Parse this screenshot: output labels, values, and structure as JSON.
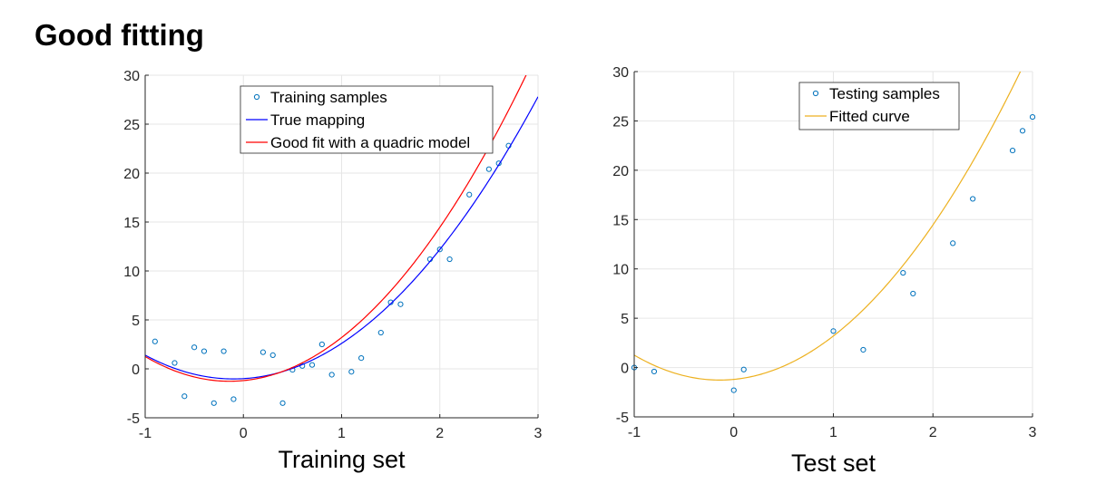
{
  "page": {
    "title": "Good fitting"
  },
  "colors": {
    "samples": "#0072BD",
    "true_mapping": "#0000FF",
    "good_fit": "#FF0000",
    "fitted_curve": "#EDB120",
    "grid": "#e6e6e6",
    "axis": "#262626"
  },
  "chart_data": [
    {
      "type": "scatter",
      "title": "",
      "xlabel": "Training set",
      "ylabel": "",
      "xlim": [
        -1,
        3
      ],
      "ylim": [
        -5,
        30
      ],
      "xticks": [
        -1,
        0,
        1,
        2,
        3
      ],
      "yticks": [
        -5,
        0,
        5,
        10,
        15,
        20,
        25,
        30
      ],
      "grid": true,
      "legend_position": "top",
      "series": [
        {
          "name": "Training samples",
          "kind": "markers",
          "color": "#0072BD",
          "x": [
            -0.9,
            -0.7,
            -0.6,
            -0.5,
            -0.4,
            -0.3,
            -0.2,
            -0.1,
            0.2,
            0.3,
            0.4,
            0.5,
            0.6,
            0.7,
            0.8,
            0.9,
            1.1,
            1.2,
            1.4,
            1.5,
            1.6,
            1.9,
            2.0,
            2.1,
            2.3,
            2.5,
            2.6,
            2.7
          ],
          "y": [
            2.8,
            0.6,
            -2.8,
            2.2,
            1.8,
            -3.5,
            1.8,
            -3.1,
            1.7,
            1.4,
            -3.5,
            -0.1,
            0.3,
            0.4,
            2.5,
            -0.6,
            -0.3,
            1.1,
            3.7,
            6.8,
            6.6,
            11.2,
            12.2,
            11.2,
            17.8,
            20.4,
            21.0,
            22.8
          ]
        },
        {
          "name": "True mapping",
          "kind": "line",
          "color": "#0000FF",
          "formula": "3x^2 + 0.6x - 1",
          "coefficients": [
            3,
            0.6,
            -1
          ]
        },
        {
          "name": "Good fit with a quadric model",
          "kind": "line",
          "color": "#FF0000",
          "formula": "3.43x^2 + 0.97x - 1.2",
          "coefficients": [
            3.43,
            0.97,
            -1.2
          ]
        }
      ]
    },
    {
      "type": "scatter",
      "title": "",
      "xlabel": "Test set",
      "ylabel": "",
      "xlim": [
        -1,
        3
      ],
      "ylim": [
        -5,
        30
      ],
      "xticks": [
        -1,
        0,
        1,
        2,
        3
      ],
      "yticks": [
        -5,
        0,
        5,
        10,
        15,
        20,
        25,
        30
      ],
      "grid": true,
      "legend_position": "top-right",
      "series": [
        {
          "name": "Testing samples",
          "kind": "markers",
          "color": "#0072BD",
          "x": [
            -1.0,
            -0.8,
            0.0,
            0.1,
            1.0,
            1.3,
            1.7,
            1.8,
            2.2,
            2.4,
            2.8,
            2.9,
            3.0
          ],
          "y": [
            0.0,
            -0.4,
            -2.3,
            -0.2,
            3.7,
            1.8,
            9.6,
            7.5,
            12.6,
            17.1,
            22.0,
            24.0,
            25.4
          ]
        },
        {
          "name": "Fitted curve",
          "kind": "line",
          "color": "#EDB120",
          "formula": "3.43x^2 + 0.97x - 1.2",
          "coefficients": [
            3.43,
            0.97,
            -1.2
          ]
        }
      ]
    }
  ]
}
